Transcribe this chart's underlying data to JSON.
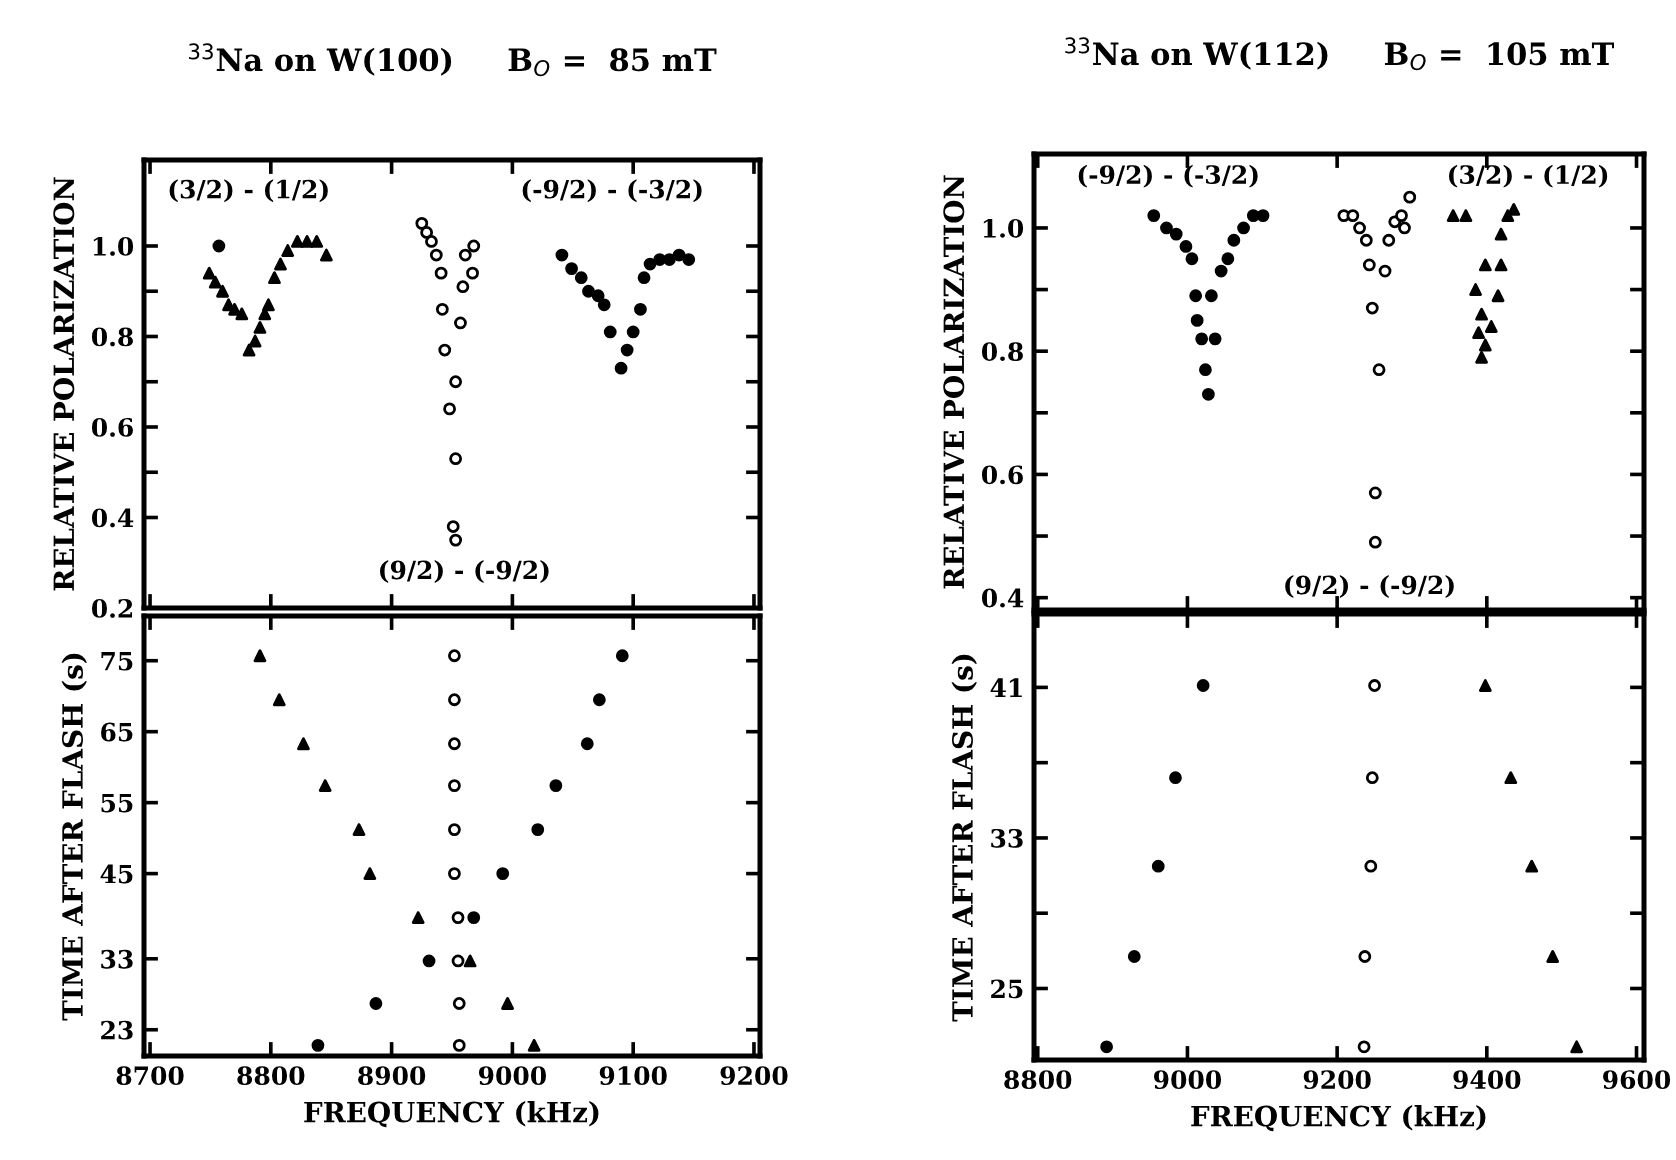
{
  "chart_data": [
    {
      "type": "scatter",
      "title": "$^{33}$Na on W(100)     B$_{O}$ =  85 mT",
      "ylabel": "RELATIVE POLARIZATION",
      "xlim": [
        8695,
        9205
      ],
      "ylim": [
        0.2,
        1.19
      ],
      "xticks": [
        8700,
        8800,
        8900,
        9000,
        9100,
        9200
      ],
      "yticks": [
        0.2,
        0.4,
        {
          "value": 0.5,
          "label": null
        },
        0.6,
        {
          "value": 0.7,
          "label": null
        },
        0.8,
        {
          "value": 0.9,
          "label": null
        },
        {
          "value": 1.0,
          "label": "1.0"
        }
      ],
      "tick_labels": "y",
      "grid": false,
      "annotations": [
        "(3/2) - (1/2)",
        "(-9/2) - (-3/2)",
        "(9/2) - (-9/2)"
      ],
      "series": [
        {
          "marker": "triangle",
          "color": "#000000",
          "x": [
            8749,
            8754,
            8760,
            8765,
            8770,
            8776,
            8782,
            8787,
            8791,
            8795,
            8798,
            8803,
            8808,
            8814,
            8822,
            8830,
            8838,
            8846
          ],
          "values": [
            0.94,
            0.92,
            0.9,
            0.87,
            0.86,
            0.85,
            0.77,
            0.79,
            0.82,
            0.85,
            0.87,
            0.93,
            0.96,
            0.99,
            1.01,
            1.01,
            1.01,
            0.98
          ]
        },
        {
          "marker": "circle",
          "color": "#ffffff",
          "x": [
            8925,
            8929,
            8933,
            8937,
            8941,
            8942,
            8944,
            8948,
            8953,
            8951,
            8953,
            8968,
            8961,
            8967,
            8959,
            8957,
            8953
          ],
          "values": [
            1.05,
            1.03,
            1.01,
            0.98,
            0.94,
            0.86,
            0.77,
            0.64,
            0.53,
            0.38,
            0.35,
            1.0,
            0.98,
            0.94,
            0.91,
            0.83,
            0.7
          ]
        },
        {
          "marker": "circle",
          "color": "#000000",
          "x": [
            9041,
            9049,
            9057,
            9063,
            9071,
            9076,
            9081,
            9090,
            9095,
            9100,
            9106,
            9109,
            9114,
            9122,
            9130,
            9138,
            9146
          ],
          "values": [
            0.98,
            0.95,
            0.93,
            0.9,
            0.89,
            0.87,
            0.81,
            0.73,
            0.77,
            0.81,
            0.86,
            0.93,
            0.96,
            0.97,
            0.97,
            0.98,
            0.97
          ]
        },
        {
          "marker": "circle",
          "color": "#000000",
          "x": [
            8757
          ],
          "values": [
            1.0
          ]
        }
      ]
    },
    {
      "type": "scatter",
      "xlabel": "FREQUENCY (kHz)",
      "ylabel": "TIME AFTER FLASH (s)",
      "xlim": [
        8695,
        9205
      ],
      "ylim": [
        19.3,
        81.3
      ],
      "xticks": [
        8700,
        8800,
        8900,
        9000,
        9100,
        9200
      ],
      "yticks": [
        23,
        33,
        45,
        55,
        65,
        75
      ],
      "grid": false,
      "series": [
        {
          "marker": "triangle",
          "color": "#000000",
          "x": [
            8791,
            8807,
            8827,
            8845,
            8873,
            8882,
            8922,
            8965,
            8996,
            9018
          ],
          "values": [
            75.7,
            69.5,
            63.3,
            57.4,
            51.2,
            45.0,
            38.8,
            32.7,
            26.7,
            20.8
          ]
        },
        {
          "marker": "circle",
          "color": "#ffffff",
          "x": [
            8952,
            8952,
            8952,
            8952,
            8952,
            8952,
            8955,
            8955,
            8956,
            8956
          ],
          "values": [
            75.7,
            69.5,
            63.3,
            57.4,
            51.2,
            45.0,
            38.8,
            32.7,
            26.7,
            20.8
          ]
        },
        {
          "marker": "circle",
          "color": "#000000",
          "x": [
            9091,
            9072,
            9062,
            9036,
            9021,
            8992,
            8968,
            8931,
            8887,
            8839
          ],
          "values": [
            75.7,
            69.5,
            63.3,
            57.4,
            51.2,
            45.0,
            38.8,
            32.7,
            26.7,
            20.8
          ]
        }
      ]
    },
    {
      "type": "scatter",
      "title": "$^{33}$Na on W(112)     B$_{O}$ =  105 mT",
      "ylabel": "RELATIVE POLARIZATION",
      "xlim": [
        8795,
        9610
      ],
      "ylim": [
        0.38,
        1.12
      ],
      "xticks": [
        8800,
        9000,
        9200,
        9400,
        9600
      ],
      "yticks": [
        0.4,
        {
          "value": 0.5,
          "label": null
        },
        0.6,
        {
          "value": 0.7,
          "label": null
        },
        0.8,
        {
          "value": 0.9,
          "label": null
        },
        {
          "value": 1.0,
          "label": "1.0"
        }
      ],
      "tick_labels": "y",
      "grid": false,
      "annotations": [
        "(-9/2) - (-3/2)",
        "(3/2) - (1/2)",
        "(9/2) - (-9/2)"
      ],
      "series": [
        {
          "marker": "circle",
          "color": "#000000",
          "x": [
            8955,
            8972,
            8985,
            8998,
            9006,
            9011,
            9013,
            9019,
            9024,
            9028,
            9032,
            9045,
            9054,
            9062,
            9075,
            9088,
            9101,
            9037
          ],
          "values": [
            1.02,
            1.0,
            0.99,
            0.97,
            0.95,
            0.89,
            0.85,
            0.82,
            0.77,
            0.73,
            0.89,
            0.93,
            0.95,
            0.98,
            1.0,
            1.02,
            1.02,
            0.82
          ]
        },
        {
          "marker": "circle",
          "color": "#ffffff",
          "x": [
            9209,
            9221,
            9230,
            9239,
            9243,
            9247,
            9256,
            9251,
            9251,
            9264,
            9269,
            9277,
            9286,
            9297,
            9290
          ],
          "values": [
            1.02,
            1.02,
            1.0,
            0.98,
            0.94,
            0.87,
            0.77,
            0.57,
            0.49,
            0.93,
            0.98,
            1.01,
            1.02,
            1.05,
            1.0
          ]
        },
        {
          "marker": "triangle",
          "color": "#000000",
          "x": [
            9355,
            9372,
            9398,
            9385,
            9393,
            9389,
            9393,
            9398,
            9406,
            9415,
            9419,
            9419,
            9428,
            9436
          ],
          "values": [
            1.02,
            1.02,
            0.94,
            0.9,
            0.86,
            0.83,
            0.79,
            0.81,
            0.84,
            0.89,
            0.94,
            0.99,
            1.02,
            1.03
          ]
        }
      ]
    },
    {
      "type": "scatter",
      "xlabel": "FREQUENCY (kHz)",
      "ylabel": "TIME AFTER FLASH (s)",
      "xlim": [
        8795,
        9610
      ],
      "ylim": [
        21.2,
        44.9
      ],
      "xticks": [
        8800,
        9000,
        9200,
        9400,
        9600
      ],
      "yticks": [
        25,
        {
          "value": 29,
          "label": null
        },
        33,
        {
          "value": 37,
          "label": null
        },
        41
      ],
      "grid": false,
      "series": [
        {
          "marker": "circle",
          "color": "#000000",
          "x": [
            9021,
            8984,
            8961,
            8929,
            8892
          ],
          "values": [
            41.1,
            36.2,
            31.5,
            26.7,
            21.9
          ]
        },
        {
          "marker": "circle",
          "color": "#ffffff",
          "x": [
            9250,
            9247,
            9245,
            9237,
            9236
          ],
          "values": [
            41.1,
            36.2,
            31.5,
            26.7,
            21.9
          ]
        },
        {
          "marker": "triangle",
          "color": "#000000",
          "x": [
            9398,
            9432,
            9460,
            9488,
            9520
          ],
          "values": [
            41.1,
            36.2,
            31.5,
            26.7,
            21.9
          ]
        }
      ]
    }
  ]
}
